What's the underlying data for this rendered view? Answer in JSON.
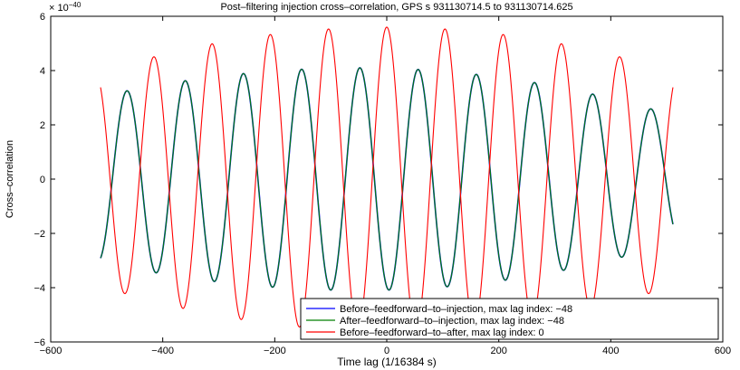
{
  "chart_data": {
    "type": "line",
    "title": "Post–filtering injection cross–correlation, GPS s 931130714.5 to 931130714.625",
    "xlabel": "Time lag (1/16384 s)",
    "ylabel": "Cross–correlation",
    "y_exponent_label": "× 10",
    "y_exponent_power": "−40",
    "xlim": [
      -600,
      600
    ],
    "ylim": [
      -6,
      6
    ],
    "xticks": [
      -600,
      -400,
      -200,
      0,
      200,
      400,
      600
    ],
    "xtick_labels": [
      "−600",
      "−400",
      "−200",
      "0",
      "200",
      "400",
      "600"
    ],
    "yticks": [
      -6,
      -4,
      -2,
      0,
      2,
      4,
      6
    ],
    "ytick_labels": [
      "−6",
      "−4",
      "−2",
      "0",
      "2",
      "4",
      "6"
    ],
    "grid": false,
    "legend_position": "bottom-right",
    "wave_period_lags": 104,
    "x_range": [
      -511,
      511
    ],
    "series": [
      {
        "name": "Before–feedforward–to–injection, max lag index: −48",
        "color": "#0000ff",
        "phase_offset_lags": -48,
        "start_value": -3.1,
        "envelope_peak": 4.1,
        "envelope_edge_left": 3.05,
        "envelope_edge_right": 2.35
      },
      {
        "name": "After–feedforward–to–injection, max lag index: −48",
        "color": "#007f00",
        "phase_offset_lags": -48,
        "start_value": -3.1,
        "envelope_peak": 4.1,
        "envelope_edge_left": 3.05,
        "envelope_edge_right": 2.35
      },
      {
        "name": "Before–feedforward–to–after, max lag index: 0",
        "color": "#ff0000",
        "phase_offset_lags": 0,
        "start_value": 3.95,
        "envelope_peak": 5.6,
        "envelope_edge_left": 3.95,
        "envelope_edge_right": 3.95
      }
    ]
  }
}
